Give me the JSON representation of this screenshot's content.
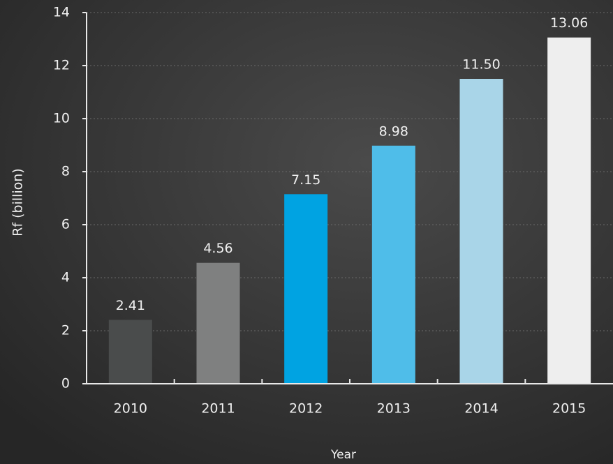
{
  "chart_data": {
    "type": "bar",
    "y_label": "Rf (billion)",
    "x_label": "Year",
    "categories": [
      "2010",
      "2011",
      "2012",
      "2013",
      "2014",
      "2015"
    ],
    "values": [
      2.41,
      4.56,
      7.15,
      8.98,
      11.5,
      13.06
    ],
    "value_labels": [
      "2.41",
      "4.56",
      "7.15",
      "8.98",
      "11.50",
      "13.06"
    ],
    "colors": [
      "#4a4c4c",
      "#7f8080",
      "#00a3e2",
      "#4fbde9",
      "#a9d5e8",
      "#eeeeee"
    ],
    "ylim": [
      0,
      14
    ],
    "yticks": [
      0,
      2,
      4,
      6,
      8,
      10,
      12,
      14
    ],
    "grid": true
  }
}
